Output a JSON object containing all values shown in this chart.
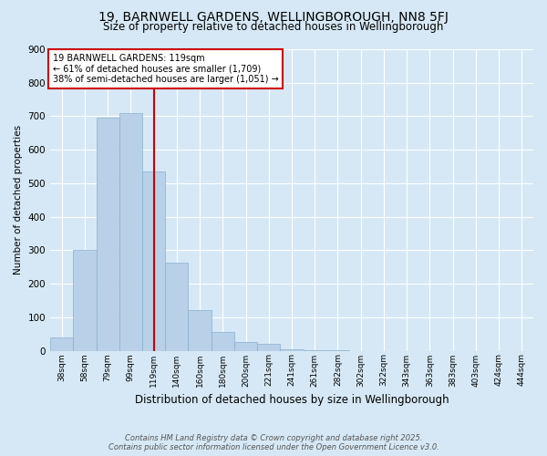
{
  "title": "19, BARNWELL GARDENS, WELLINGBOROUGH, NN8 5FJ",
  "subtitle": "Size of property relative to detached houses in Wellingborough",
  "xlabel": "Distribution of detached houses by size in Wellingborough",
  "ylabel": "Number of detached properties",
  "footer_line1": "Contains HM Land Registry data © Crown copyright and database right 2025.",
  "footer_line2": "Contains public sector information licensed under the Open Government Licence v3.0.",
  "annotation_line1": "19 BARNWELL GARDENS: 119sqm",
  "annotation_line2": "← 61% of detached houses are smaller (1,709)",
  "annotation_line3": "38% of semi-detached houses are larger (1,051) →",
  "vertical_line_bin": 4,
  "categories": [
    "38sqm",
    "58sqm",
    "79sqm",
    "99sqm",
    "119sqm",
    "140sqm",
    "160sqm",
    "180sqm",
    "200sqm",
    "221sqm",
    "241sqm",
    "261sqm",
    "282sqm",
    "302sqm",
    "322sqm",
    "343sqm",
    "363sqm",
    "383sqm",
    "403sqm",
    "424sqm",
    "444sqm"
  ],
  "values": [
    40,
    300,
    695,
    710,
    535,
    263,
    122,
    55,
    25,
    20,
    5,
    2,
    1,
    0,
    0,
    0,
    0,
    0,
    0,
    0,
    0
  ],
  "bar_color": "#b8d0e8",
  "bar_edge_color": "#8ab0ce",
  "vline_color": "#cc0000",
  "annotation_box_edge_color": "#cc0000",
  "background_color": "#d6e8f5",
  "ylim": [
    0,
    900
  ],
  "yticks": [
    0,
    100,
    200,
    300,
    400,
    500,
    600,
    700,
    800,
    900
  ],
  "title_fontsize": 10,
  "subtitle_fontsize": 8.5,
  "xlabel_fontsize": 8.5,
  "ylabel_fontsize": 7.5,
  "xtick_fontsize": 6.5,
  "ytick_fontsize": 7.5,
  "annotation_fontsize": 7,
  "footer_fontsize": 6
}
